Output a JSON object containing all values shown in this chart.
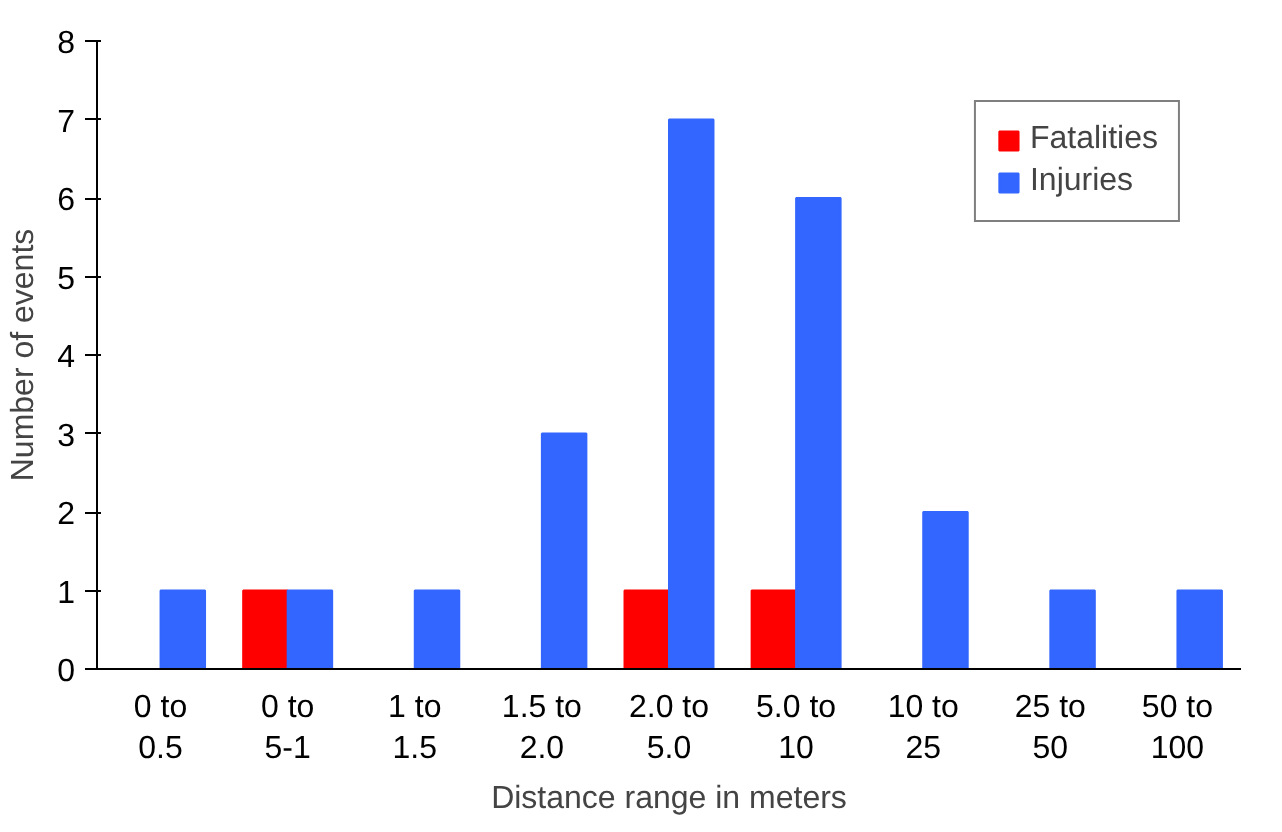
{
  "chart_data": {
    "type": "bar",
    "xlabel": "Distance range in meters",
    "ylabel": "Number of events",
    "categories": [
      "0 to\n0.5",
      "0 to\n5-1",
      "1 to\n1.5",
      "1.5 to\n2.0",
      "2.0 to\n5.0",
      "5.0 to\n10",
      "10 to\n25",
      "25 to\n50",
      "50 to\n100"
    ],
    "series": [
      {
        "name": "Fatalities",
        "color": "#ff0000",
        "values": [
          0,
          1,
          0,
          0,
          1,
          1,
          0,
          0,
          0
        ]
      },
      {
        "name": "Injuries",
        "color": "#3366ff",
        "values": [
          1,
          1,
          1,
          3,
          7,
          6,
          2,
          1,
          1
        ]
      }
    ],
    "ylim": [
      0,
      8
    ],
    "yticks": [
      0,
      1,
      2,
      3,
      4,
      5,
      6,
      7,
      8
    ],
    "grid": false,
    "legend": "top right"
  }
}
